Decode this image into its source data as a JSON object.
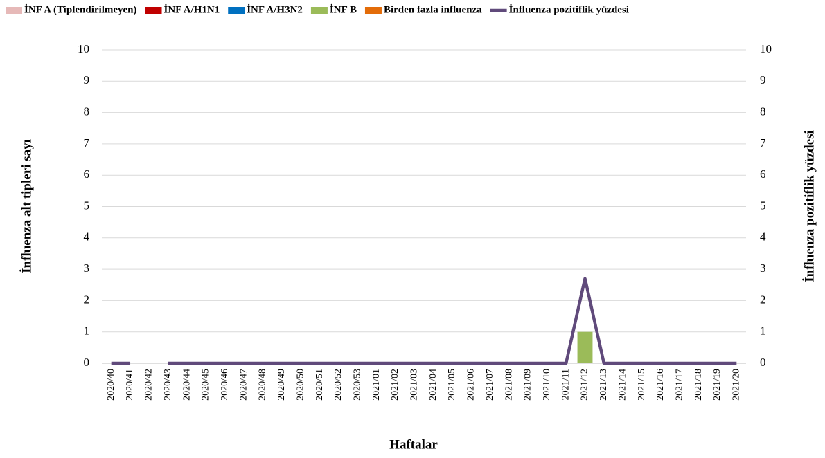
{
  "chart_data": {
    "type": "bar",
    "stacked": true,
    "x_label": "Haftalar",
    "y_label": "İnfluenza alt tipleri sayı",
    "y2_label": "İnfluenza pozitiflik yüzdesi",
    "categories": [
      "2020/40",
      "2020/41",
      "2020/42",
      "2020/43",
      "2020/44",
      "2020/45",
      "2020/46",
      "2020/47",
      "2020/48",
      "2020/49",
      "2020/50",
      "2020/51",
      "2020/52",
      "2020/53",
      "2021/01",
      "2021/02",
      "2021/03",
      "2021/04",
      "2021/05",
      "2021/06",
      "2021/07",
      "2021/08",
      "2021/09",
      "2021/10",
      "2021/11",
      "2021/12",
      "2021/13",
      "2021/14",
      "2021/15",
      "2021/16",
      "2021/17",
      "2021/18",
      "2021/19",
      "2021/20"
    ],
    "series": [
      {
        "name": "İNF A (Tiplendirilmeyen)",
        "color": "#e6b9b8",
        "values": [
          0,
          0,
          0,
          0,
          0,
          0,
          0,
          0,
          0,
          0,
          0,
          0,
          0,
          0,
          0,
          0,
          0,
          0,
          0,
          0,
          0,
          0,
          0,
          0,
          0,
          0,
          0,
          0,
          0,
          0,
          0,
          0,
          0,
          0
        ]
      },
      {
        "name": "İNF A/H1N1",
        "color": "#c00000",
        "values": [
          0,
          0,
          0,
          0,
          0,
          0,
          0,
          0,
          0,
          0,
          0,
          0,
          0,
          0,
          0,
          0,
          0,
          0,
          0,
          0,
          0,
          0,
          0,
          0,
          0,
          0,
          0,
          0,
          0,
          0,
          0,
          0,
          0,
          0
        ]
      },
      {
        "name": "İNF A/H3N2",
        "color": "#0070c0",
        "values": [
          0,
          0,
          0,
          0,
          0,
          0,
          0,
          0,
          0,
          0,
          0,
          0,
          0,
          0,
          0,
          0,
          0,
          0,
          0,
          0,
          0,
          0,
          0,
          0,
          0,
          0,
          0,
          0,
          0,
          0,
          0,
          0,
          0,
          0
        ]
      },
      {
        "name": "İNF B",
        "color": "#9bbb59",
        "values": [
          0,
          0,
          0,
          0,
          0,
          0,
          0,
          0,
          0,
          0,
          0,
          0,
          0,
          0,
          0,
          0,
          0,
          0,
          0,
          0,
          0,
          0,
          0,
          0,
          0,
          1,
          0,
          0,
          0,
          0,
          0,
          0,
          0,
          0
        ]
      },
      {
        "name": "Birden fazla influenza",
        "color": "#e36c09",
        "values": [
          0,
          0,
          0,
          0,
          0,
          0,
          0,
          0,
          0,
          0,
          0,
          0,
          0,
          0,
          0,
          0,
          0,
          0,
          0,
          0,
          0,
          0,
          0,
          0,
          0,
          0,
          0,
          0,
          0,
          0,
          0,
          0,
          0,
          0
        ]
      },
      {
        "name": "İnfluenza pozitiflik yüzdesi",
        "color": "#604a7b",
        "type": "line",
        "axis": "y2",
        "values": [
          0,
          0,
          null,
          0,
          0,
          0,
          0,
          0,
          0,
          0,
          0,
          0,
          0,
          0,
          0,
          0,
          0,
          0,
          0,
          0,
          0,
          0,
          0,
          0,
          0,
          2.7,
          0,
          0,
          0,
          0,
          0,
          0,
          0,
          0
        ]
      }
    ],
    "ylim": [
      0,
      10
    ],
    "yticks": [
      0,
      1,
      2,
      3,
      4,
      5,
      6,
      7,
      8,
      9,
      10
    ],
    "y2lim": [
      0,
      10
    ],
    "y2ticks": [
      0,
      1,
      2,
      3,
      4,
      5,
      6,
      7,
      8,
      9,
      10
    ],
    "grid": true,
    "legend": "top"
  }
}
